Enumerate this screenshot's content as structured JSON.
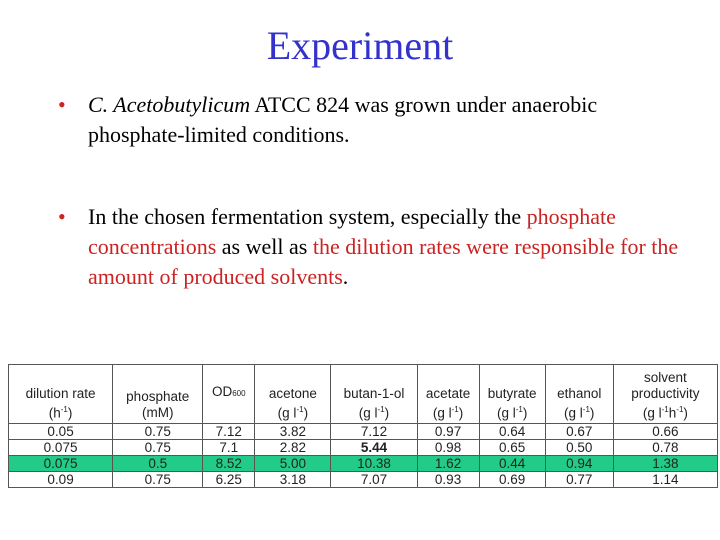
{
  "slide": {
    "title": "Experiment",
    "bullets": [
      {
        "marker": "•",
        "species": "C. Acetobutylicum",
        "rest_line": " ATCC 824 was grown under anaerobic phosphate-limited conditions."
      },
      {
        "marker": "•",
        "lead": "In the chosen fermentation system, especially the ",
        "red1": "phosphate concentrations",
        "mid": " as well as ",
        "red2": "the dilution rates were responsible for the amount of produced solvents",
        "tail": "."
      }
    ],
    "colors": {
      "title": "#3333cc",
      "accent_red": "#cc2222",
      "highlight_row": "#22cc88"
    }
  },
  "table": {
    "headers": {
      "dilution": {
        "top": "dilution rate",
        "unit_a": "(h",
        "unit_sup": "-1",
        "unit_b": ")"
      },
      "phosphate": {
        "top": "phosphate",
        "unit": "(mM)"
      },
      "od": {
        "main": "OD",
        "sub": "600"
      },
      "acetone": {
        "top": "acetone",
        "unit_a": "(g l",
        "unit_sup": "-1",
        "unit_b": ")"
      },
      "butanol": {
        "top": "butan-1-ol",
        "unit_a": "(g l",
        "unit_sup": "-1",
        "unit_b": ")"
      },
      "acetate": {
        "top": "acetate",
        "unit_a": "(g l",
        "unit_sup": "-1",
        "unit_b": ")"
      },
      "butyrate": {
        "top": "butyrate",
        "unit_a": "(g l",
        "unit_sup": "-1",
        "unit_b": ")"
      },
      "ethanol": {
        "top": "ethanol",
        "unit_a": "(g l",
        "unit_sup": "-1",
        "unit_b": ")"
      },
      "productivity": {
        "top1": "solvent",
        "top2": "productivity",
        "unit_a": "(g l",
        "unit_sup1": "-1",
        "unit_mid": "h",
        "unit_sup2": "-1",
        "unit_b": ")"
      }
    },
    "rows": [
      [
        "0.05",
        "0.75",
        "7.12",
        "3.82",
        "7.12",
        "0.97",
        "0.64",
        "0.67",
        "0.66"
      ],
      [
        "0.075",
        "0.75",
        "7.1",
        "2.82",
        "5.44",
        "0.98",
        "0.65",
        "0.50",
        "0.78"
      ],
      [
        "0.075",
        "0.5",
        "8.52",
        "5.00",
        "10.38",
        "1.62",
        "0.44",
        "0.94",
        "1.38"
      ],
      [
        "0.09",
        "0.75",
        "6.25",
        "3.18",
        "7.07",
        "0.93",
        "0.69",
        "0.77",
        "1.14"
      ]
    ]
  }
}
